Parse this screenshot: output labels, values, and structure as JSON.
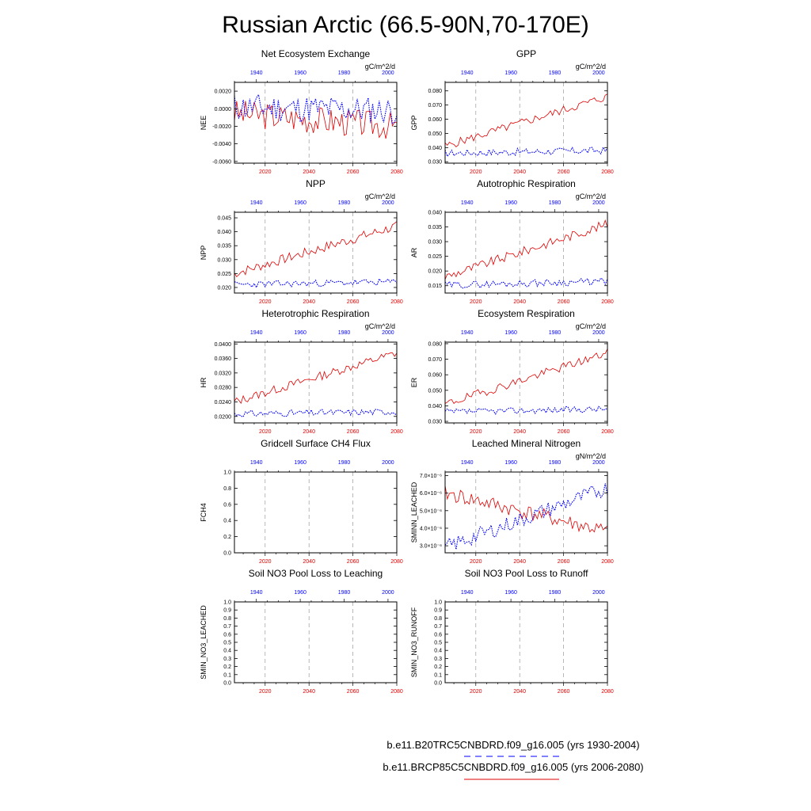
{
  "figure_title": "Russian Arctic (66.5-90N,70-170E)",
  "legend": {
    "control_label": "b.e11.B20TRC5CNBDRD.f09_g16.005 (yrs 1930-2004)",
    "future_label": "b.e11.BRCP85C5CNBDRD.f09_g16.005 (yrs 2006-2080)",
    "control_color": "#0000ff",
    "future_color": "#e00000"
  },
  "chart_data": [
    {
      "type": "line",
      "title": "Net Ecosystem Exchange",
      "ylabel": "NEE",
      "units": "gC/m^2/d",
      "ylim": [
        -0.0062,
        0.003
      ],
      "yticks": [
        0.002,
        0.0,
        -0.002,
        -0.004,
        -0.006
      ],
      "ytick_labels": [
        "0.0020",
        "0.0000",
        "-0.0020",
        "-0.0040",
        "-0.0060"
      ],
      "xlim_bottom": [
        2006,
        2080
      ],
      "xticks_bottom": [
        2020,
        2040,
        2060,
        2080
      ],
      "xlim_top": [
        1930,
        2004
      ],
      "xticks_top": [
        1940,
        1960,
        1980,
        2000
      ],
      "series": [
        {
          "name": "b.e11.BRCP85C5CNBDRD.f09_g16.005",
          "color": "#e00000",
          "style": "solid",
          "pattern": {
            "start": -0.0005,
            "end": -0.002,
            "amp": 0.0016,
            "seed": 3
          }
        },
        {
          "name": "b.e11.B20TRC5CNBDRD.f09_g16.005",
          "color": "#0000ff",
          "style": "dotted",
          "pattern": {
            "start": 0.0002,
            "end": -0.0002,
            "amp": 0.0016,
            "seed": 11
          }
        }
      ]
    },
    {
      "type": "line",
      "title": "GPP",
      "ylabel": "GPP",
      "units": "gC/m^2/d",
      "ylim": [
        0.029,
        0.086
      ],
      "yticks": [
        0.03,
        0.04,
        0.05,
        0.06,
        0.07,
        0.08
      ],
      "ytick_labels": [
        "0.030",
        "0.040",
        "0.050",
        "0.060",
        "0.070",
        "0.080"
      ],
      "xlim_bottom": [
        2006,
        2080
      ],
      "xticks_bottom": [
        2020,
        2040,
        2060,
        2080
      ],
      "xlim_top": [
        1930,
        2004
      ],
      "xticks_top": [
        1940,
        1960,
        1980,
        2000
      ],
      "series": [
        {
          "name": "b.e11.BRCP85C5CNBDRD.f09_g16.005",
          "color": "#e00000",
          "style": "solid",
          "pattern": {
            "start": 0.041,
            "end": 0.076,
            "amp": 0.003,
            "seed": 5
          }
        },
        {
          "name": "b.e11.B20TRC5CNBDRD.f09_g16.005",
          "color": "#0000ff",
          "style": "dotted",
          "pattern": {
            "start": 0.036,
            "end": 0.038,
            "amp": 0.0025,
            "seed": 17
          }
        }
      ]
    },
    {
      "type": "line",
      "title": "NPP",
      "ylabel": "NPP",
      "units": "gC/m^2/d",
      "ylim": [
        0.018,
        0.047
      ],
      "yticks": [
        0.02,
        0.025,
        0.03,
        0.035,
        0.04,
        0.045
      ],
      "ytick_labels": [
        "0.020",
        "0.025",
        "0.030",
        "0.035",
        "0.040",
        "0.045"
      ],
      "xlim_bottom": [
        2006,
        2080
      ],
      "xticks_bottom": [
        2020,
        2040,
        2060,
        2080
      ],
      "xlim_top": [
        1930,
        2004
      ],
      "xticks_top": [
        1940,
        1960,
        1980,
        2000
      ],
      "series": [
        {
          "name": "b.e11.BRCP85C5CNBDRD.f09_g16.005",
          "color": "#e00000",
          "style": "solid",
          "pattern": {
            "start": 0.025,
            "end": 0.042,
            "amp": 0.0018,
            "seed": 7
          }
        },
        {
          "name": "b.e11.B20TRC5CNBDRD.f09_g16.005",
          "color": "#0000ff",
          "style": "dotted",
          "pattern": {
            "start": 0.021,
            "end": 0.022,
            "amp": 0.0012,
            "seed": 23
          }
        }
      ]
    },
    {
      "type": "line",
      "title": "Autotrophic Respiration",
      "ylabel": "AR",
      "units": "gC/m^2/d",
      "ylim": [
        0.0125,
        0.04
      ],
      "yticks": [
        0.015,
        0.02,
        0.025,
        0.03,
        0.035,
        0.04
      ],
      "ytick_labels": [
        "0.015",
        "0.020",
        "0.025",
        "0.030",
        "0.035",
        "0.040"
      ],
      "xlim_bottom": [
        2006,
        2080
      ],
      "xticks_bottom": [
        2020,
        2040,
        2060,
        2080
      ],
      "xlim_top": [
        1930,
        2004
      ],
      "xticks_top": [
        1940,
        1960,
        1980,
        2000
      ],
      "series": [
        {
          "name": "b.e11.BRCP85C5CNBDRD.f09_g16.005",
          "color": "#e00000",
          "style": "solid",
          "pattern": {
            "start": 0.018,
            "end": 0.036,
            "amp": 0.0016,
            "seed": 9
          }
        },
        {
          "name": "b.e11.B20TRC5CNBDRD.f09_g16.005",
          "color": "#0000ff",
          "style": "dotted",
          "pattern": {
            "start": 0.0152,
            "end": 0.0165,
            "amp": 0.0012,
            "seed": 29
          }
        }
      ]
    },
    {
      "type": "line",
      "title": "Heterotrophic Respiration",
      "ylabel": "HR",
      "units": "gC/m^2/d",
      "ylim": [
        0.0182,
        0.0405
      ],
      "yticks": [
        0.02,
        0.024,
        0.028,
        0.032,
        0.036,
        0.04
      ],
      "ytick_labels": [
        "0.0200",
        "0.0240",
        "0.0280",
        "0.0320",
        "0.0360",
        "0.0400"
      ],
      "xlim_bottom": [
        2006,
        2080
      ],
      "xticks_bottom": [
        2020,
        2040,
        2060,
        2080
      ],
      "xlim_top": [
        1930,
        2004
      ],
      "xticks_top": [
        1940,
        1960,
        1980,
        2000
      ],
      "series": [
        {
          "name": "b.e11.BRCP85C5CNBDRD.f09_g16.005",
          "color": "#e00000",
          "style": "solid",
          "pattern": {
            "start": 0.024,
            "end": 0.0375,
            "amp": 0.0012,
            "seed": 13
          }
        },
        {
          "name": "b.e11.B20TRC5CNBDRD.f09_g16.005",
          "color": "#0000ff",
          "style": "dotted",
          "pattern": {
            "start": 0.0207,
            "end": 0.0213,
            "amp": 0.0009,
            "seed": 31
          }
        }
      ]
    },
    {
      "type": "line",
      "title": "Ecosystem Respiration",
      "ylabel": "ER",
      "units": "gC/m^2/d",
      "ylim": [
        0.029,
        0.081
      ],
      "yticks": [
        0.03,
        0.04,
        0.05,
        0.06,
        0.07,
        0.08
      ],
      "ytick_labels": [
        "0.030",
        "0.040",
        "0.050",
        "0.060",
        "0.070",
        "0.080"
      ],
      "xlim_bottom": [
        2006,
        2080
      ],
      "xticks_bottom": [
        2020,
        2040,
        2060,
        2080
      ],
      "xlim_top": [
        1930,
        2004
      ],
      "xticks_top": [
        1940,
        1960,
        1980,
        2000
      ],
      "series": [
        {
          "name": "b.e11.BRCP85C5CNBDRD.f09_g16.005",
          "color": "#e00000",
          "style": "solid",
          "pattern": {
            "start": 0.041,
            "end": 0.074,
            "amp": 0.0028,
            "seed": 19
          }
        },
        {
          "name": "b.e11.B20TRC5CNBDRD.f09_g16.005",
          "color": "#0000ff",
          "style": "dotted",
          "pattern": {
            "start": 0.036,
            "end": 0.038,
            "amp": 0.002,
            "seed": 37
          }
        }
      ]
    },
    {
      "type": "line",
      "title": "Gridcell Surface CH4 Flux",
      "ylabel": "FCH4",
      "units": "",
      "ylim": [
        0,
        1
      ],
      "yticks": [
        0,
        0.2,
        0.4,
        0.6,
        0.8,
        1.0
      ],
      "ytick_labels": [
        "0.0",
        "0.2",
        "0.4",
        "0.6",
        "0.8",
        "1.0"
      ],
      "xlim_bottom": [
        2006,
        2080
      ],
      "xticks_bottom": [
        2020,
        2040,
        2060,
        2080
      ],
      "xlim_top": [
        1930,
        2004
      ],
      "xticks_top": [
        1940,
        1960,
        1980,
        2000
      ],
      "series": []
    },
    {
      "type": "line",
      "title": "Leached Mineral Nitrogen",
      "ylabel": "SMINN_LEACHED",
      "units": "gN/m^2/d",
      "ylim": [
        2.6e-06,
        7.2e-06
      ],
      "yticks": [
        3e-06,
        4e-06,
        5e-06,
        6e-06,
        7e-06
      ],
      "ytick_labels": [
        "3.0×10⁻⁶",
        "4.0×10⁻⁶",
        "5.0×10⁻⁶",
        "6.0×10⁻⁶",
        "7.0×10⁻⁶"
      ],
      "xlim_bottom": [
        2006,
        2080
      ],
      "xticks_bottom": [
        2020,
        2040,
        2060,
        2080
      ],
      "xlim_top": [
        1930,
        2004
      ],
      "xticks_top": [
        1940,
        1960,
        1980,
        2000
      ],
      "series": [
        {
          "name": "b.e11.BRCP85C5CNBDRD.f09_g16.005",
          "color": "#e00000",
          "style": "solid",
          "pattern": {
            "start": 6e-06,
            "end": 3.8e-06,
            "amp": 4.5e-07,
            "seed": 41
          }
        },
        {
          "name": "b.e11.B20TRC5CNBDRD.f09_g16.005",
          "color": "#0000ff",
          "style": "dotted",
          "pattern": {
            "start": 2.9e-06,
            "end": 6.3e-06,
            "amp": 4.5e-07,
            "seed": 43
          }
        }
      ]
    },
    {
      "type": "line",
      "title": "Soil NO3 Pool Loss to Leaching",
      "ylabel": "SMIN_NO3_LEACHED",
      "units": "",
      "ylim": [
        0,
        1
      ],
      "yticks": [
        0,
        0.1,
        0.2,
        0.3,
        0.4,
        0.5,
        0.6,
        0.7,
        0.8,
        0.9,
        1.0
      ],
      "ytick_labels": [
        "0.0",
        "0.1",
        "0.2",
        "0.3",
        "0.4",
        "0.5",
        "0.6",
        "0.7",
        "0.8",
        "0.9",
        "1.0"
      ],
      "xlim_bottom": [
        2006,
        2080
      ],
      "xticks_bottom": [
        2020,
        2040,
        2060,
        2080
      ],
      "xlim_top": [
        1930,
        2004
      ],
      "xticks_top": [
        1940,
        1960,
        1980,
        2000
      ],
      "series": []
    },
    {
      "type": "line",
      "title": "Soil NO3 Pool Loss to Runoff",
      "ylabel": "SMIN_NO3_RUNOFF",
      "units": "",
      "ylim": [
        0,
        1
      ],
      "yticks": [
        0,
        0.1,
        0.2,
        0.3,
        0.4,
        0.5,
        0.6,
        0.7,
        0.8,
        0.9,
        1.0
      ],
      "ytick_labels": [
        "0.0",
        "0.1",
        "0.2",
        "0.3",
        "0.4",
        "0.5",
        "0.6",
        "0.7",
        "0.8",
        "0.9",
        "1.0"
      ],
      "xlim_bottom": [
        2006,
        2080
      ],
      "xticks_bottom": [
        2020,
        2040,
        2060,
        2080
      ],
      "xlim_top": [
        1930,
        2004
      ],
      "xticks_top": [
        1940,
        1960,
        1980,
        2000
      ],
      "series": []
    }
  ]
}
